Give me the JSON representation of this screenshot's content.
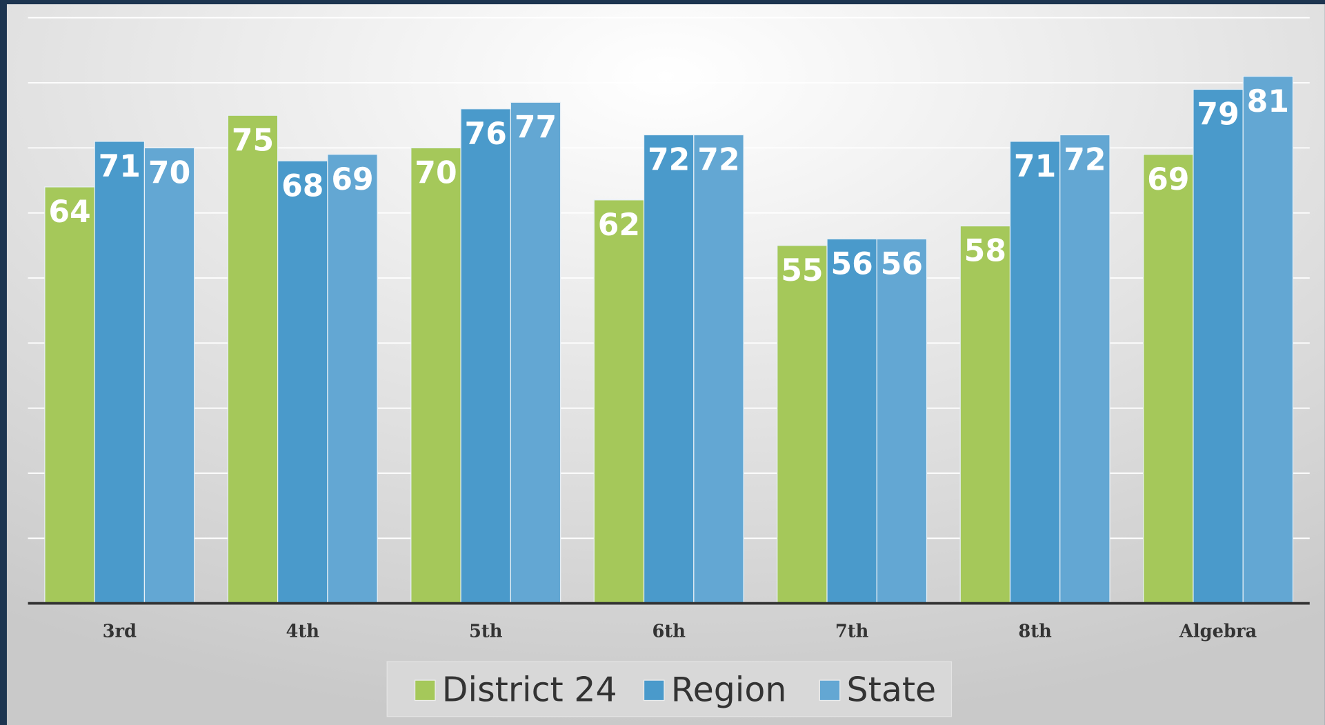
{
  "chart_data": {
    "type": "bar",
    "categories": [
      "3rd",
      "4th",
      "5th",
      "6th",
      "7th",
      "8th",
      "Algebra"
    ],
    "series": [
      {
        "name": "District 24",
        "color": "#a5c85a",
        "values": [
          64,
          75,
          70,
          62,
          55,
          58,
          69
        ]
      },
      {
        "name": "Region",
        "color": "#4a9acb",
        "values": [
          71,
          68,
          76,
          72,
          56,
          71,
          79
        ]
      },
      {
        "name": "State",
        "color": "#63a7d3",
        "values": [
          70,
          69,
          77,
          72,
          56,
          72,
          81
        ]
      }
    ],
    "ylim": [
      0,
      90
    ],
    "yticks": [
      0,
      10,
      20,
      30,
      40,
      50,
      60,
      70,
      80,
      90
    ],
    "grid": true,
    "legend": "bottom"
  }
}
